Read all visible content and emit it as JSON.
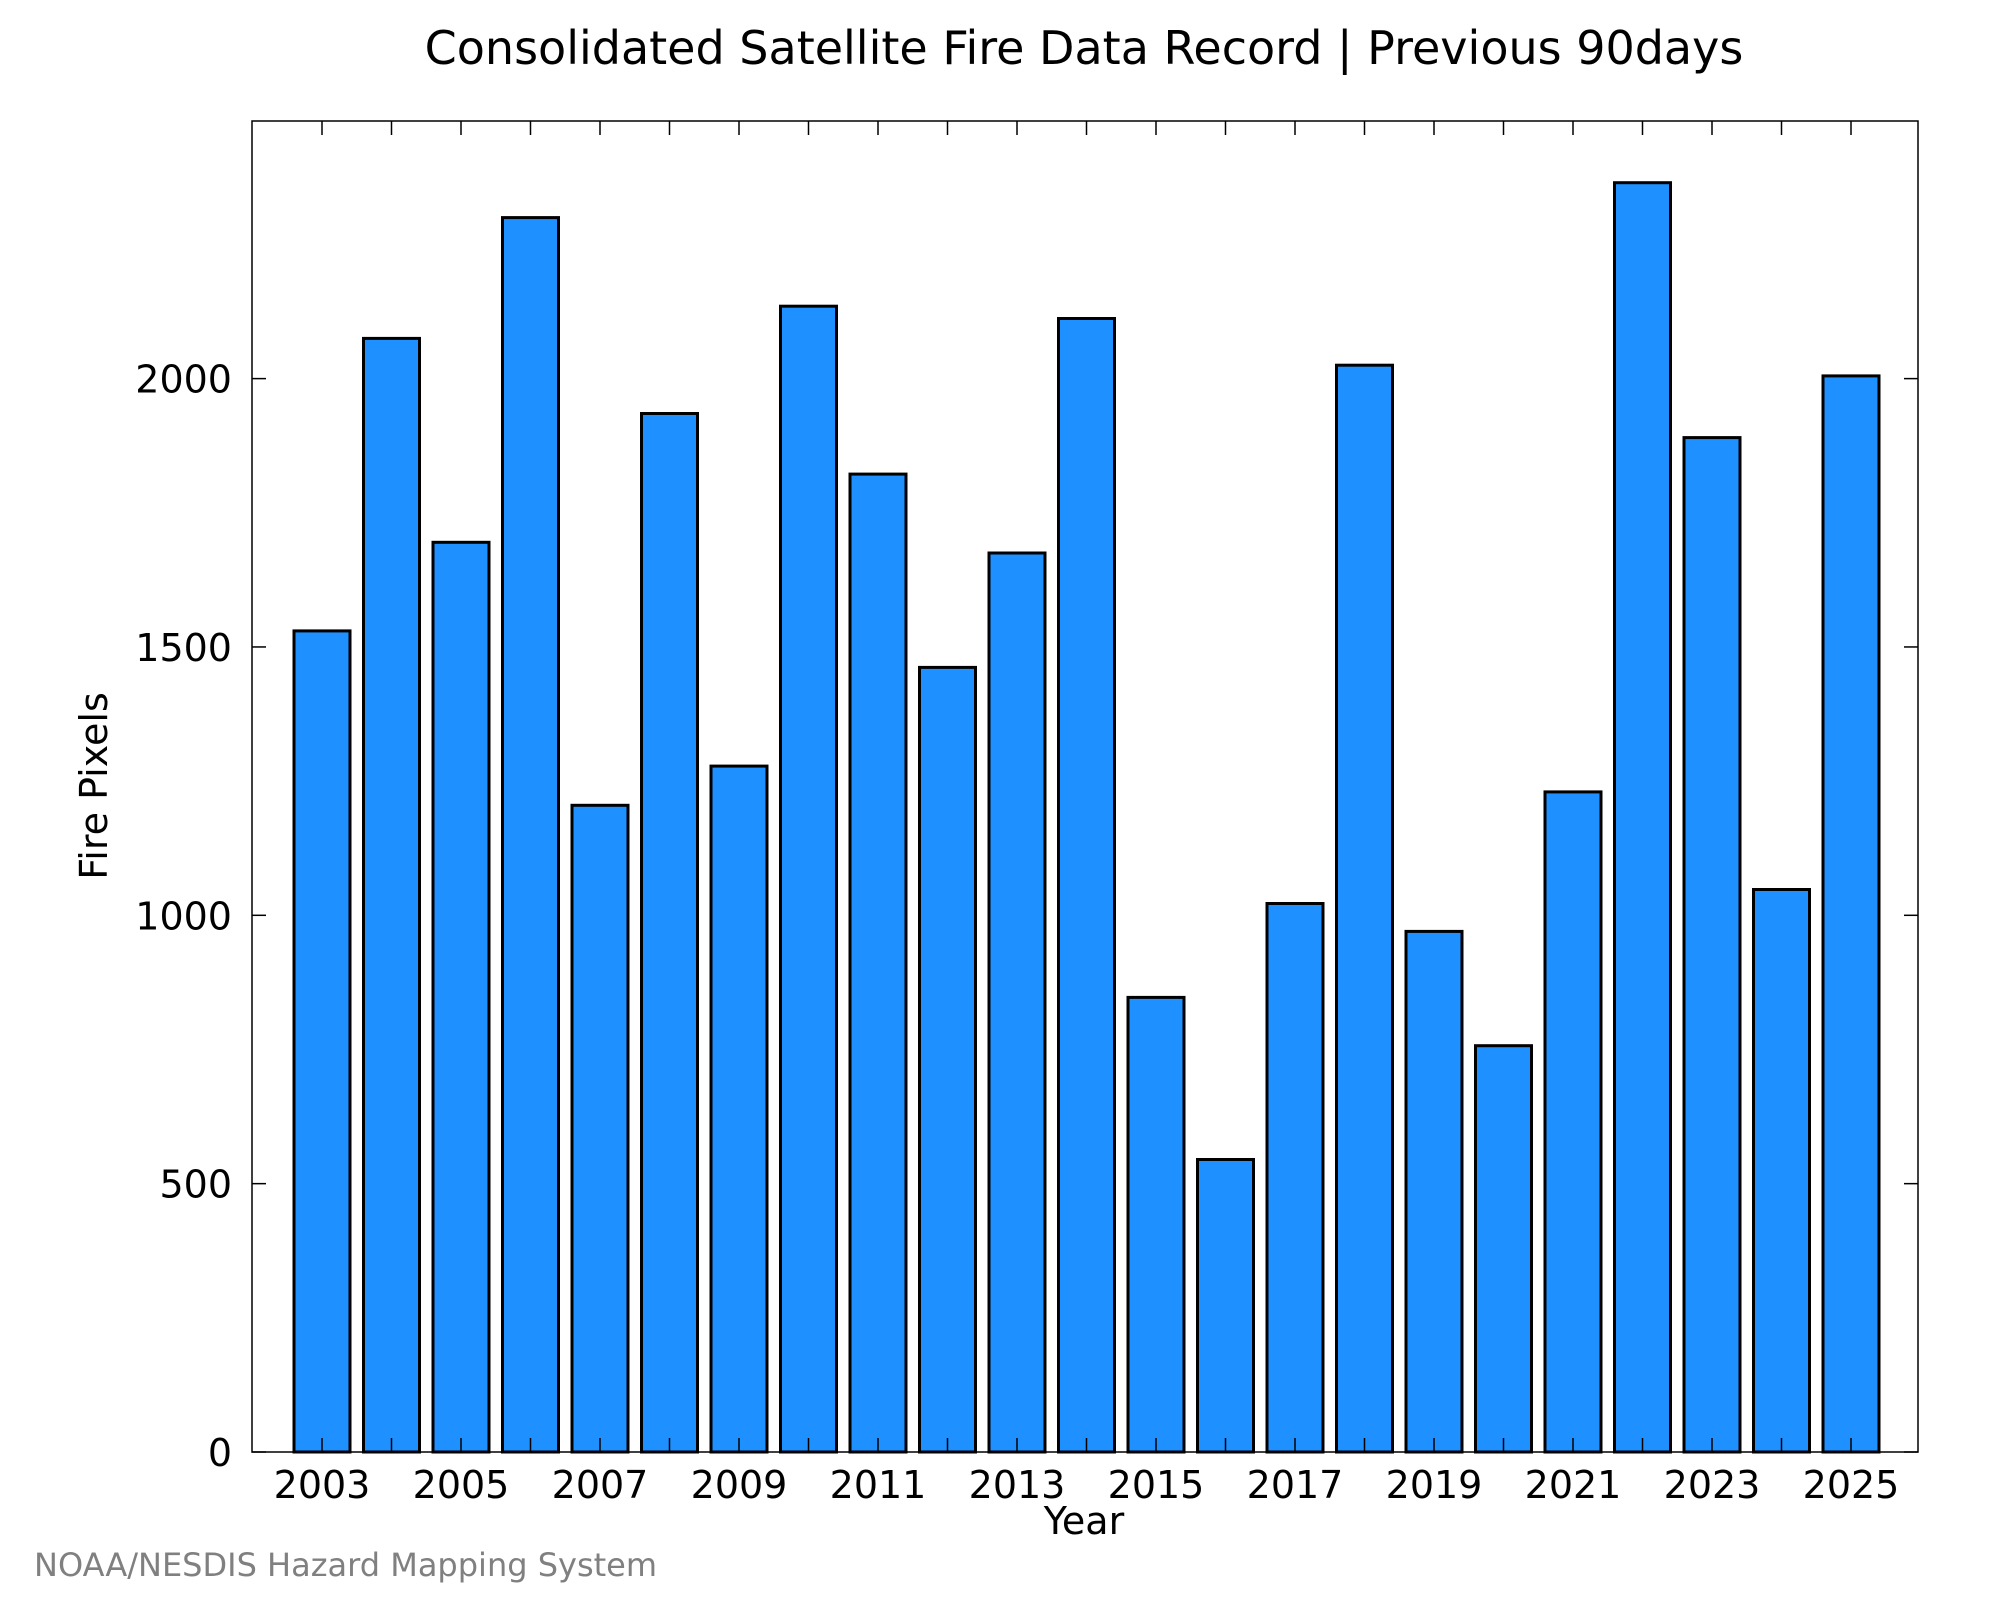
{
  "chart_data": {
    "type": "bar",
    "title": "Consolidated Satellite Fire Data Record | Previous 90days",
    "xlabel": "Year",
    "ylabel": "Fire Pixels",
    "categories": [
      "2003",
      "2004",
      "2005",
      "2006",
      "2007",
      "2008",
      "2009",
      "2010",
      "2011",
      "2012",
      "2013",
      "2014",
      "2015",
      "2016",
      "2017",
      "2018",
      "2019",
      "2020",
      "2021",
      "2022",
      "2023",
      "2024",
      "2025"
    ],
    "values": [
      1530,
      2075,
      1695,
      2300,
      1205,
      1935,
      1278,
      2135,
      1822,
      1462,
      1675,
      2112,
      847,
      545,
      1022,
      2025,
      970,
      757,
      1230,
      2365,
      1890,
      1048,
      2005
    ],
    "x_tick_labels": [
      "2003",
      "2005",
      "2007",
      "2009",
      "2011",
      "2013",
      "2015",
      "2017",
      "2019",
      "2021",
      "2023",
      "2025"
    ],
    "y_ticks": [
      0,
      500,
      1000,
      1500,
      2000
    ],
    "ylim": [
      0,
      2480
    ],
    "grid": false,
    "bar_color": "#1e90ff",
    "edge_color": "#000000",
    "credit": "NOAA/NESDIS Hazard Mapping System"
  }
}
